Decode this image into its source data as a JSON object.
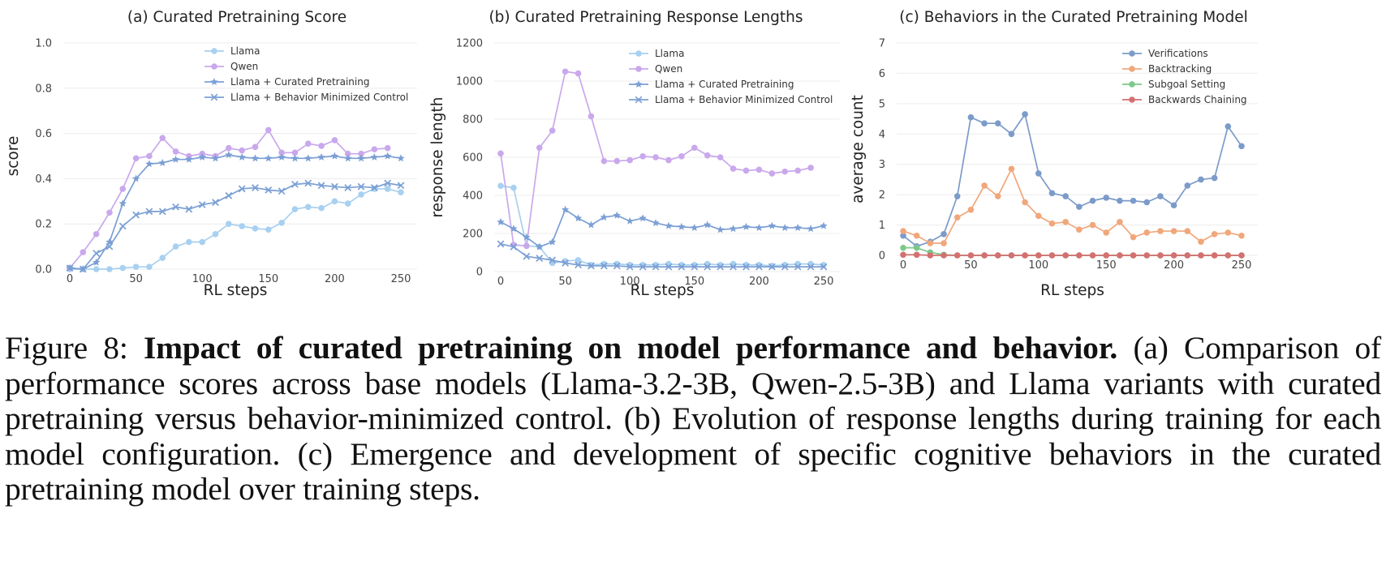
{
  "chart_data": [
    {
      "type": "line",
      "title": "(a) Curated Pretraining Score",
      "xlabel": "RL steps",
      "ylabel": "score",
      "xlim": [
        0,
        250
      ],
      "ylim": [
        0,
        1.0
      ],
      "xticks": [
        "0",
        "50",
        "100",
        "150",
        "200",
        "250"
      ],
      "yticks": [
        "0.0",
        "0.2",
        "0.4",
        "0.6",
        "0.8",
        "1.0"
      ],
      "legend_position": "top-right",
      "x": [
        0,
        10,
        20,
        30,
        40,
        50,
        60,
        70,
        80,
        90,
        100,
        110,
        120,
        130,
        140,
        150,
        160,
        170,
        180,
        190,
        200,
        210,
        220,
        230,
        240,
        250
      ],
      "series": [
        {
          "name": "Llama",
          "color": "#a8d0f0",
          "marker": "circle",
          "values": [
            0.0,
            0.0,
            0.0,
            0.0,
            0.005,
            0.01,
            0.01,
            0.05,
            0.1,
            0.12,
            0.12,
            0.155,
            0.2,
            0.19,
            0.18,
            0.175,
            0.205,
            0.265,
            0.275,
            0.27,
            0.3,
            0.29,
            0.33,
            0.355,
            0.355,
            0.34
          ]
        },
        {
          "name": "Qwen",
          "color": "#c9a8ec",
          "marker": "circle",
          "values": [
            0.005,
            0.075,
            0.155,
            0.25,
            0.355,
            0.49,
            0.5,
            0.58,
            0.52,
            0.5,
            0.51,
            0.5,
            0.535,
            0.525,
            0.54,
            0.615,
            0.515,
            0.515,
            0.555,
            0.545,
            0.57,
            0.51,
            0.51,
            0.53,
            0.535,
            null
          ]
        },
        {
          "name": "Llama + Curated Pretraining",
          "color": "#7b9fd4",
          "marker": "star",
          "values": [
            0.005,
            0.0,
            0.03,
            0.12,
            0.29,
            0.4,
            0.465,
            0.47,
            0.485,
            0.485,
            0.495,
            0.49,
            0.505,
            0.495,
            0.49,
            0.49,
            0.495,
            0.49,
            0.49,
            0.495,
            0.5,
            0.49,
            0.49,
            0.495,
            0.5,
            0.49
          ]
        },
        {
          "name": "Llama + Behavior Minimized Control",
          "color": "#7b9fd4",
          "marker": "x",
          "values": [
            0.005,
            0.0,
            0.07,
            0.1,
            0.19,
            0.24,
            0.255,
            0.255,
            0.275,
            0.265,
            0.285,
            0.295,
            0.325,
            0.355,
            0.36,
            0.35,
            0.345,
            0.375,
            0.38,
            0.37,
            0.365,
            0.36,
            0.365,
            0.36,
            0.38,
            0.37
          ]
        }
      ]
    },
    {
      "type": "line",
      "title": "(b) Curated Pretraining Response Lengths",
      "xlabel": "RL steps",
      "ylabel": "response length",
      "xlim": [
        0,
        250
      ],
      "ylim": [
        0,
        1200
      ],
      "xticks": [
        "0",
        "50",
        "100",
        "150",
        "200",
        "250"
      ],
      "yticks": [
        "0",
        "200",
        "400",
        "600",
        "800",
        "1000",
        "1200"
      ],
      "legend_position": "top-right",
      "x": [
        0,
        10,
        20,
        30,
        40,
        50,
        60,
        70,
        80,
        90,
        100,
        110,
        120,
        130,
        140,
        150,
        160,
        170,
        180,
        190,
        200,
        210,
        220,
        230,
        240,
        250
      ],
      "series": [
        {
          "name": "Llama",
          "color": "#a8d0f0",
          "marker": "circle",
          "values": [
            450,
            440,
            135,
            130,
            45,
            55,
            60,
            35,
            40,
            40,
            35,
            35,
            35,
            40,
            35,
            35,
            40,
            35,
            40,
            35,
            35,
            30,
            35,
            40,
            40,
            35
          ]
        },
        {
          "name": "Qwen",
          "color": "#c9a8ec",
          "marker": "circle",
          "values": [
            620,
            140,
            135,
            650,
            740,
            1050,
            1040,
            815,
            580,
            580,
            585,
            605,
            600,
            585,
            605,
            650,
            610,
            600,
            540,
            530,
            535,
            515,
            525,
            530,
            545,
            null
          ]
        },
        {
          "name": "Llama + Curated Pretraining",
          "color": "#7b9fd4",
          "marker": "star",
          "values": [
            260,
            225,
            180,
            130,
            155,
            325,
            280,
            245,
            285,
            295,
            265,
            280,
            255,
            240,
            235,
            230,
            245,
            220,
            225,
            235,
            230,
            240,
            230,
            230,
            225,
            240
          ]
        },
        {
          "name": "Llama + Behavior Minimized Control",
          "color": "#7b9fd4",
          "marker": "x",
          "values": [
            145,
            130,
            80,
            70,
            60,
            45,
            35,
            30,
            30,
            30,
            25,
            25,
            25,
            25,
            25,
            25,
            25,
            25,
            25,
            25,
            25,
            25,
            25,
            25,
            25,
            25
          ]
        }
      ]
    },
    {
      "type": "line",
      "title": "(c) Behaviors in the Curated Pretraining Model",
      "xlabel": "RL steps",
      "ylabel": "average count",
      "xlim": [
        0,
        250
      ],
      "ylim": [
        0,
        7
      ],
      "xticks": [
        "0",
        "50",
        "100",
        "150",
        "200",
        "250"
      ],
      "yticks": [
        "0",
        "1",
        "2",
        "3",
        "4",
        "5",
        "6",
        "7"
      ],
      "legend_position": "top-right",
      "x": [
        0,
        10,
        20,
        30,
        40,
        50,
        60,
        70,
        80,
        90,
        100,
        110,
        120,
        130,
        140,
        150,
        160,
        170,
        180,
        190,
        200,
        210,
        220,
        230,
        240,
        250
      ],
      "series": [
        {
          "name": "Verifications",
          "color": "#7b9bc9",
          "marker": "circle",
          "values": [
            0.65,
            0.3,
            0.45,
            0.7,
            1.95,
            4.55,
            4.35,
            4.35,
            4.0,
            4.65,
            2.7,
            2.05,
            1.95,
            1.6,
            1.8,
            1.9,
            1.8,
            1.8,
            1.75,
            1.95,
            1.65,
            2.3,
            2.5,
            2.55,
            4.25,
            3.6
          ]
        },
        {
          "name": "Backtracking",
          "color": "#f0a77b",
          "marker": "circle",
          "values": [
            0.8,
            0.65,
            0.4,
            0.4,
            1.25,
            1.5,
            2.3,
            1.95,
            2.85,
            1.75,
            1.3,
            1.05,
            1.1,
            0.85,
            1.0,
            0.75,
            1.1,
            0.6,
            0.75,
            0.8,
            0.8,
            0.8,
            0.45,
            0.7,
            0.75,
            0.65
          ]
        },
        {
          "name": "Subgoal Setting",
          "color": "#7cc98a",
          "marker": "circle",
          "values": [
            0.25,
            0.25,
            0.1,
            0.02,
            0.0,
            0.0,
            0.0,
            0.0,
            0.0,
            0.0,
            0.0,
            0.0,
            0.0,
            0.0,
            0.0,
            0.0,
            0.0,
            0.0,
            0.0,
            0.0,
            0.0,
            0.0,
            0.0,
            0.0,
            0.0,
            0.0
          ]
        },
        {
          "name": "Backwards Chaining",
          "color": "#d47070",
          "marker": "circle",
          "values": [
            0.02,
            0.02,
            0.0,
            0.0,
            0.0,
            0.0,
            0.0,
            0.0,
            0.0,
            0.0,
            0.0,
            0.0,
            0.0,
            0.0,
            0.0,
            0.0,
            0.0,
            0.0,
            0.0,
            0.0,
            0.0,
            0.0,
            0.0,
            0.0,
            0.0,
            0.0
          ]
        }
      ]
    }
  ],
  "caption": {
    "label": "Figure 8:",
    "bold": "Impact of curated pretraining on model performance and behavior.",
    "text": "(a) Comparison of performance scores across base models (Llama-3.2-3B, Qwen-2.5-3B) and Llama variants with curated pretraining versus behavior-minimized control. (b) Evolution of response lengths during training for each model configuration. (c) Emergence and development of specific cognitive behaviors in the curated pretraining model over training steps."
  }
}
